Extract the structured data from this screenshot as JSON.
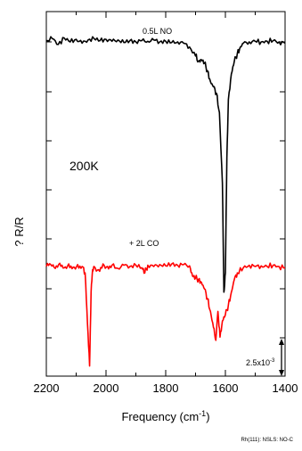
{
  "chart_data": {
    "type": "line",
    "xlabel_text": "Frequency (cm",
    "xlabel_sup": "-1",
    "xlabel_close": ")",
    "ylabel": "? R/R",
    "xlim": [
      2200,
      1400
    ],
    "x_ticks": [
      2200,
      2000,
      1800,
      1600,
      1400
    ],
    "x_tick_labels": [
      "2200",
      "2000",
      "1800",
      "1600",
      "1400"
    ],
    "grid": false,
    "annotations": {
      "top_trace": "0.5L NO",
      "temperature": "200K",
      "bottom_trace": "+ 2L CO",
      "scale_bar_base": "2.5x10",
      "scale_bar_exp": "-3",
      "footer": "Rh(111): NSLS: NO-C"
    },
    "series": [
      {
        "color": "#000000",
        "points": [
          [
            2200,
            0.02
          ],
          [
            2180,
            0.05
          ],
          [
            2160,
            -0.04
          ],
          [
            2140,
            0.06
          ],
          [
            2120,
            0.0
          ],
          [
            2100,
            0.04
          ],
          [
            2080,
            -0.02
          ],
          [
            2060,
            0.03
          ],
          [
            2040,
            0.05
          ],
          [
            2020,
            0.02
          ],
          [
            2000,
            0.04
          ],
          [
            1980,
            0.01
          ],
          [
            1960,
            0.03
          ],
          [
            1940,
            -0.01
          ],
          [
            1920,
            0.02
          ],
          [
            1900,
            0.0
          ],
          [
            1880,
            0.02
          ],
          [
            1860,
            0.01
          ],
          [
            1840,
            0.03
          ],
          [
            1820,
            0.0
          ],
          [
            1800,
            0.01
          ],
          [
            1780,
            -0.01
          ],
          [
            1760,
            0.0
          ],
          [
            1740,
            -0.02
          ],
          [
            1720,
            -0.08
          ],
          [
            1700,
            -0.22
          ],
          [
            1690,
            -0.3
          ],
          [
            1680,
            -0.28
          ],
          [
            1670,
            -0.33
          ],
          [
            1660,
            -0.45
          ],
          [
            1650,
            -0.62
          ],
          [
            1640,
            -0.7
          ],
          [
            1630,
            -0.8
          ],
          [
            1620,
            -1.1
          ],
          [
            1610,
            -2.2
          ],
          [
            1605,
            -3.9
          ],
          [
            1600,
            -3.6
          ],
          [
            1595,
            -1.8
          ],
          [
            1590,
            -0.9
          ],
          [
            1580,
            -0.5
          ],
          [
            1570,
            -0.3
          ],
          [
            1560,
            -0.18
          ],
          [
            1550,
            -0.08
          ],
          [
            1540,
            -0.02
          ],
          [
            1520,
            0.0
          ],
          [
            1500,
            0.01
          ],
          [
            1480,
            0.0
          ],
          [
            1460,
            0.01
          ],
          [
            1440,
            0.02
          ],
          [
            1420,
            0.0
          ],
          [
            1400,
            -0.02
          ]
        ]
      },
      {
        "color": "#ff0000",
        "points": [
          [
            2200,
            0.0
          ],
          [
            2185,
            0.03
          ],
          [
            2170,
            -0.03
          ],
          [
            2155,
            0.05
          ],
          [
            2140,
            -0.02
          ],
          [
            2125,
            0.04
          ],
          [
            2110,
            -0.01
          ],
          [
            2095,
            0.03
          ],
          [
            2080,
            0.0
          ],
          [
            2070,
            -0.1
          ],
          [
            2062,
            -0.9
          ],
          [
            2055,
            -1.55
          ],
          [
            2050,
            -0.4
          ],
          [
            2045,
            -0.05
          ],
          [
            2040,
            0.0
          ],
          [
            2025,
            -0.05
          ],
          [
            2010,
            0.04
          ],
          [
            1995,
            0.0
          ],
          [
            1980,
            0.02
          ],
          [
            1960,
            -0.03
          ],
          [
            1940,
            0.02
          ],
          [
            1920,
            0.0
          ],
          [
            1900,
            0.02
          ],
          [
            1880,
            -0.02
          ],
          [
            1870,
            -0.1
          ],
          [
            1860,
            0.02
          ],
          [
            1840,
            0.0
          ],
          [
            1820,
            0.03
          ],
          [
            1800,
            0.01
          ],
          [
            1780,
            0.04
          ],
          [
            1760,
            0.02
          ],
          [
            1740,
            0.03
          ],
          [
            1720,
            0.01
          ],
          [
            1710,
            -0.15
          ],
          [
            1700,
            -0.18
          ],
          [
            1690,
            -0.2
          ],
          [
            1680,
            -0.25
          ],
          [
            1670,
            -0.35
          ],
          [
            1660,
            -0.5
          ],
          [
            1650,
            -0.7
          ],
          [
            1640,
            -0.95
          ],
          [
            1632,
            -1.15
          ],
          [
            1625,
            -0.7
          ],
          [
            1618,
            -1.1
          ],
          [
            1610,
            -0.85
          ],
          [
            1600,
            -0.75
          ],
          [
            1590,
            -0.6
          ],
          [
            1580,
            -0.4
          ],
          [
            1570,
            -0.2
          ],
          [
            1560,
            -0.1
          ],
          [
            1540,
            -0.02
          ],
          [
            1520,
            0.02
          ],
          [
            1500,
            0.0
          ],
          [
            1480,
            0.01
          ],
          [
            1460,
            0.0
          ],
          [
            1440,
            0.02
          ],
          [
            1420,
            0.0
          ],
          [
            1400,
            -0.02
          ]
        ]
      }
    ]
  }
}
